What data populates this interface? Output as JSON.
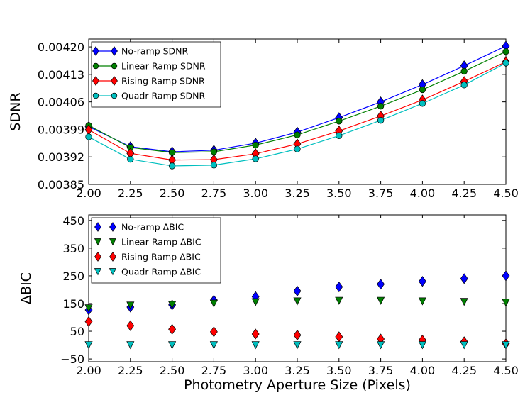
{
  "chart_data": [
    {
      "type": "line",
      "title": "",
      "xlabel": "",
      "ylabel": "SDNR",
      "xlim": [
        2.0,
        4.5
      ],
      "ylim": [
        0.00385,
        0.00422
      ],
      "xticks": [
        2.0,
        2.25,
        2.5,
        2.75,
        3.0,
        3.25,
        3.5,
        3.75,
        4.0,
        4.25,
        4.5
      ],
      "xtick_labels": [
        "2.00",
        "2.25",
        "2.50",
        "2.75",
        "3.00",
        "3.25",
        "3.50",
        "3.75",
        "4.00",
        "4.25",
        "4.50"
      ],
      "yticks": [
        0.00385,
        0.00392,
        0.00399,
        0.00406,
        0.00413,
        0.0042
      ],
      "ytick_labels": [
        "0.00385",
        "0.00392",
        "0.00399",
        "0.00406",
        "0.00413",
        "0.00420"
      ],
      "legend_position": "top-left",
      "x": [
        2.0,
        2.25,
        2.5,
        2.75,
        3.0,
        3.25,
        3.5,
        3.75,
        4.0,
        4.25,
        4.5
      ],
      "series": [
        {
          "name": "No-ramp SDNR",
          "color": "#0000ff",
          "marker": "diamond",
          "values": [
            0.003997,
            0.003946,
            0.003933,
            0.003937,
            0.003955,
            0.003983,
            0.00402,
            0.00406,
            0.004104,
            0.004152,
            0.004202
          ]
        },
        {
          "name": "Linear Ramp SDNR",
          "color": "#008000",
          "marker": "circle",
          "values": [
            0.004,
            0.003944,
            0.003931,
            0.003933,
            0.00395,
            0.003976,
            0.004011,
            0.004049,
            0.004091,
            0.004138,
            0.004188
          ]
        },
        {
          "name": "Rising Ramp SDNR",
          "color": "#ff0000",
          "marker": "diamond",
          "values": [
            0.003989,
            0.003929,
            0.003912,
            0.003913,
            0.003928,
            0.003953,
            0.003986,
            0.004024,
            0.004065,
            0.004112,
            0.004162
          ]
        },
        {
          "name": "Quadr Ramp SDNR",
          "color": "#00bfbf",
          "marker": "circle",
          "values": [
            0.003971,
            0.003914,
            0.003897,
            0.003899,
            0.003915,
            0.00394,
            0.003974,
            0.004013,
            0.004056,
            0.004103,
            0.004159
          ]
        }
      ]
    },
    {
      "type": "scatter",
      "title": "",
      "xlabel": "Photometry Aperture Size (Pixels)",
      "ylabel": "ΔBIC",
      "xlim": [
        2.0,
        4.5
      ],
      "ylim": [
        -60,
        470
      ],
      "xticks": [
        2.0,
        2.25,
        2.5,
        2.75,
        3.0,
        3.25,
        3.5,
        3.75,
        4.0,
        4.25,
        4.5
      ],
      "xtick_labels": [
        "2.00",
        "2.25",
        "2.50",
        "2.75",
        "3.00",
        "3.25",
        "3.50",
        "3.75",
        "4.00",
        "4.25",
        "4.50"
      ],
      "yticks": [
        -50,
        50,
        150,
        250,
        350,
        450
      ],
      "ytick_labels": [
        "−50",
        "50",
        "150",
        "250",
        "350",
        "450"
      ],
      "legend_position": "top-left",
      "x": [
        2.0,
        2.25,
        2.5,
        2.75,
        3.0,
        3.25,
        3.5,
        3.75,
        4.0,
        4.25,
        4.5
      ],
      "series": [
        {
          "name": "No-ramp ΔBIC",
          "color": "#0000ff",
          "marker": "diamond",
          "values": [
            127,
            137,
            145,
            162,
            175,
            195,
            210,
            220,
            230,
            240,
            250
          ]
        },
        {
          "name": "Linear Ramp ΔBIC",
          "color": "#008000",
          "marker": "triangle-down",
          "values": [
            133,
            143,
            145,
            150,
            155,
            158,
            160,
            160,
            158,
            156,
            153
          ]
        },
        {
          "name": "Rising Ramp ΔBIC",
          "color": "#ff0000",
          "marker": "diamond",
          "values": [
            85,
            70,
            57,
            48,
            40,
            36,
            30,
            22,
            18,
            12,
            5
          ]
        },
        {
          "name": "Quadr Ramp ΔBIC",
          "color": "#00bfbf",
          "marker": "triangle-down",
          "values": [
            0,
            0,
            0,
            0,
            0,
            0,
            0,
            0,
            0,
            0,
            0
          ]
        }
      ]
    }
  ]
}
